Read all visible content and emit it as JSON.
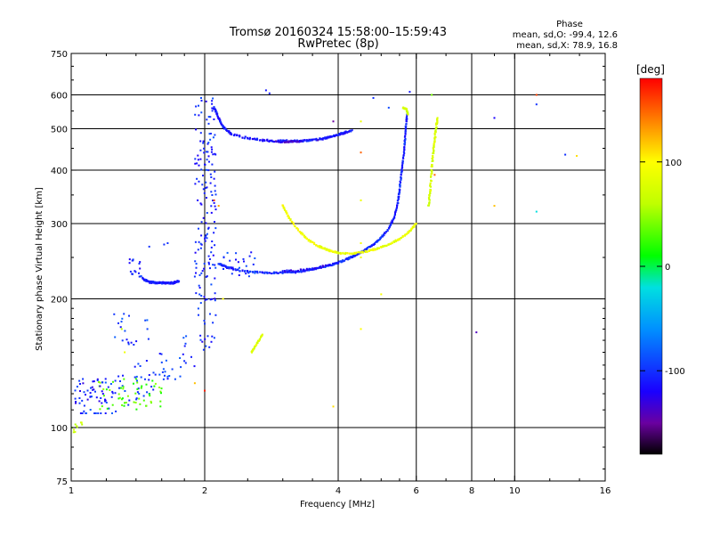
{
  "header": {
    "title_line1": "Tromsø 20160324 15:58:00–15:59:43",
    "title_line2": "RwPretec (8p)"
  },
  "phase_stats": {
    "title": "Phase",
    "line_o": "mean, sd,O: -99.4, 12.6",
    "line_x": "mean, sd,X: 78.9, 16.8"
  },
  "colorbar": {
    "label": "[deg]",
    "ticks": [
      {
        "value": 100,
        "label": "100"
      },
      {
        "value": 0,
        "label": "0"
      },
      {
        "value": -100,
        "label": "-100"
      }
    ],
    "range": [
      -180,
      180
    ],
    "stops": [
      {
        "value": -180,
        "color": "#000000"
      },
      {
        "value": -150,
        "color": "#6a00a0"
      },
      {
        "value": -120,
        "color": "#1a00ff"
      },
      {
        "value": -60,
        "color": "#0090ff"
      },
      {
        "value": -20,
        "color": "#00e0e0"
      },
      {
        "value": 10,
        "color": "#00ff00"
      },
      {
        "value": 60,
        "color": "#c0ff00"
      },
      {
        "value": 100,
        "color": "#ffff00"
      },
      {
        "value": 140,
        "color": "#ff8000"
      },
      {
        "value": 180,
        "color": "#ff0000"
      }
    ]
  },
  "chart_data": {
    "type": "scatter",
    "title": "Tromsø 20160324 15:58:00–15:59:43",
    "subtitle": "RwPretec (8p)",
    "xlabel": "Frequency [MHz]",
    "ylabel": "Stationary phase Virtual Height [km]",
    "xscale": "log",
    "yscale": "log",
    "xlim": [
      1,
      16
    ],
    "ylim": [
      75,
      750
    ],
    "xticks": [
      {
        "value": 1,
        "label": "1"
      },
      {
        "value": 2,
        "label": "2"
      },
      {
        "value": 4,
        "label": "4"
      },
      {
        "value": 6,
        "label": "6"
      },
      {
        "value": 8,
        "label": "8"
      },
      {
        "value": 10,
        "label": "10"
      },
      {
        "value": 16,
        "label": "16"
      }
    ],
    "xtick_positions": [
      1,
      1.2,
      1.4,
      1.6,
      1.8,
      2,
      2.5,
      3,
      3.5,
      4,
      4.5,
      5,
      5.5,
      6,
      7,
      8,
      9,
      10,
      12,
      14,
      16
    ],
    "yticks": [
      {
        "value": 75,
        "label": "75"
      },
      {
        "value": 100,
        "label": "100"
      },
      {
        "value": 200,
        "label": "200"
      },
      {
        "value": 300,
        "label": "300"
      },
      {
        "value": 400,
        "label": "400"
      },
      {
        "value": 500,
        "label": "500"
      },
      {
        "value": 600,
        "label": "600"
      },
      {
        "value": 750,
        "label": "750"
      }
    ],
    "ytick_positions": [
      75,
      80,
      90,
      100,
      110,
      120,
      130,
      140,
      150,
      160,
      170,
      180,
      190,
      200,
      250,
      300,
      350,
      400,
      450,
      500,
      550,
      600,
      650,
      700,
      750
    ],
    "grid_x": [
      2,
      4,
      6,
      8,
      10
    ],
    "grid_y": [
      100,
      200,
      300,
      400,
      500,
      600
    ],
    "grid": true,
    "color_encoding": "phase_deg",
    "traces": [
      {
        "name": "",
        "phase": -110,
        "spread": 0.005,
        "dup": 3,
        "points": [
          [
            1.45,
            223
          ],
          [
            1.5,
            219
          ],
          [
            1.55,
            218
          ],
          [
            1.6,
            218
          ],
          [
            1.65,
            218
          ],
          [
            1.7,
            218
          ],
          [
            1.75,
            220
          ]
        ]
      },
      {
        "name": "",
        "phase": -105,
        "spread": 0.004,
        "dup": 3,
        "points": [
          [
            2.15,
            242
          ],
          [
            2.25,
            237
          ],
          [
            2.4,
            233
          ],
          [
            2.6,
            231
          ],
          [
            2.8,
            230
          ],
          [
            3.0,
            230
          ],
          [
            3.2,
            231
          ],
          [
            3.4,
            233
          ],
          [
            3.6,
            236
          ],
          [
            3.8,
            239
          ],
          [
            4.0,
            243
          ],
          [
            4.2,
            248
          ],
          [
            4.4,
            254
          ],
          [
            4.6,
            260
          ],
          [
            4.8,
            268
          ],
          [
            5.0,
            278
          ],
          [
            5.2,
            292
          ],
          [
            5.35,
            310
          ],
          [
            5.45,
            335
          ],
          [
            5.5,
            360
          ],
          [
            5.55,
            390
          ],
          [
            5.6,
            420
          ],
          [
            5.65,
            460
          ],
          [
            5.68,
            500
          ],
          [
            5.72,
            540
          ]
        ]
      },
      {
        "name": "",
        "phase": -120,
        "spread": 0.004,
        "dup": 2,
        "points": [
          [
            3.0,
            232
          ],
          [
            3.2,
            233
          ],
          [
            3.5,
            235
          ],
          [
            3.8,
            240
          ]
        ]
      },
      {
        "name": "",
        "phase": -110,
        "spread": 0.005,
        "dup": 3,
        "points": [
          [
            2.1,
            560
          ],
          [
            2.15,
            530
          ],
          [
            2.2,
            505
          ],
          [
            2.3,
            485
          ],
          [
            2.5,
            475
          ],
          [
            2.7,
            470
          ],
          [
            2.9,
            468
          ],
          [
            3.1,
            468
          ],
          [
            3.3,
            468
          ],
          [
            3.5,
            470
          ],
          [
            3.7,
            474
          ],
          [
            3.9,
            480
          ],
          [
            4.1,
            488
          ],
          [
            4.3,
            496
          ]
        ]
      },
      {
        "name": "",
        "phase": -130,
        "spread": 0.004,
        "dup": 2,
        "points": [
          [
            2.9,
            466
          ],
          [
            3.1,
            466
          ],
          [
            3.3,
            467
          ]
        ]
      },
      {
        "name": "",
        "phase": 90,
        "spread": 0.004,
        "dup": 3,
        "points": [
          [
            3.0,
            330
          ],
          [
            3.1,
            310
          ],
          [
            3.25,
            290
          ],
          [
            3.4,
            276
          ],
          [
            3.6,
            266
          ],
          [
            3.8,
            260
          ],
          [
            4.0,
            256
          ],
          [
            4.3,
            255
          ],
          [
            4.6,
            258
          ],
          [
            4.9,
            262
          ],
          [
            5.2,
            268
          ],
          [
            5.5,
            276
          ],
          [
            5.8,
            288
          ],
          [
            6.0,
            300
          ]
        ]
      },
      {
        "name": "",
        "phase": 75,
        "spread": 0.006,
        "dup": 3,
        "points": [
          [
            6.4,
            330
          ],
          [
            6.45,
            360
          ],
          [
            6.5,
            400
          ],
          [
            6.55,
            440
          ],
          [
            6.6,
            470
          ],
          [
            6.65,
            500
          ],
          [
            6.7,
            530
          ]
        ]
      },
      {
        "name": "",
        "phase": 70,
        "spread": 0.004,
        "dup": 2,
        "points": [
          [
            5.6,
            560
          ],
          [
            5.7,
            555
          ],
          [
            5.75,
            540
          ]
        ]
      },
      {
        "name": "",
        "phase": 80,
        "spread": 0.004,
        "dup": 2,
        "points": [
          [
            2.55,
            150
          ],
          [
            2.6,
            155
          ],
          [
            2.65,
            160
          ],
          [
            2.7,
            165
          ]
        ]
      }
    ],
    "clouds": [
      {
        "name": "",
        "phase": -105,
        "count": 170,
        "x": [
          1.9,
          2.12
        ],
        "y": [
          150,
          590
        ],
        "logy": true
      },
      {
        "name": "",
        "phase": -100,
        "count": 90,
        "x": [
          1.05,
          1.9
        ],
        "y": [
          108,
          165
        ],
        "ramp": true
      },
      {
        "name": "",
        "phase": 30,
        "count": 55,
        "x": [
          1.15,
          1.6
        ],
        "y": [
          110,
          130
        ]
      },
      {
        "name": "",
        "phase": -110,
        "count": 35,
        "x": [
          1.02,
          1.2
        ],
        "y": [
          112,
          130
        ]
      },
      {
        "name": "",
        "phase": 60,
        "count": 10,
        "x": [
          1.0,
          1.06
        ],
        "y": [
          97,
          104
        ]
      },
      {
        "name": "",
        "phase": -95,
        "count": 20,
        "x": [
          1.25,
          1.5
        ],
        "y": [
          155,
          185
        ]
      },
      {
        "name": "",
        "phase": -105,
        "count": 18,
        "x": [
          1.35,
          1.45
        ],
        "y": [
          225,
          250
        ]
      },
      {
        "name": "",
        "phase": -100,
        "count": 25,
        "x": [
          2.2,
          2.6
        ],
        "y": [
          225,
          260
        ]
      }
    ],
    "scatter": [
      {
        "x": 2.8,
        "y": 605,
        "phase": -110
      },
      {
        "x": 2.75,
        "y": 615,
        "phase": -110
      },
      {
        "x": 3.6,
        "y": 470,
        "phase": -140
      },
      {
        "x": 3.9,
        "y": 520,
        "phase": -150
      },
      {
        "x": 4.5,
        "y": 520,
        "phase": 90
      },
      {
        "x": 4.5,
        "y": 440,
        "phase": 150
      },
      {
        "x": 4.5,
        "y": 340,
        "phase": 90
      },
      {
        "x": 4.5,
        "y": 270,
        "phase": 95
      },
      {
        "x": 4.5,
        "y": 250,
        "phase": 90
      },
      {
        "x": 4.5,
        "y": 170,
        "phase": 100
      },
      {
        "x": 4.8,
        "y": 590,
        "phase": -100
      },
      {
        "x": 5.0,
        "y": 205,
        "phase": 95
      },
      {
        "x": 5.2,
        "y": 560,
        "phase": -90
      },
      {
        "x": 5.8,
        "y": 610,
        "phase": -110
      },
      {
        "x": 6.5,
        "y": 600,
        "phase": 40
      },
      {
        "x": 6.6,
        "y": 390,
        "phase": 150
      },
      {
        "x": 8.2,
        "y": 167,
        "phase": -140
      },
      {
        "x": 9.0,
        "y": 530,
        "phase": -120
      },
      {
        "x": 9.0,
        "y": 330,
        "phase": 120
      },
      {
        "x": 11.2,
        "y": 600,
        "phase": 160
      },
      {
        "x": 11.2,
        "y": 570,
        "phase": -100
      },
      {
        "x": 11.2,
        "y": 320,
        "phase": -20
      },
      {
        "x": 13.0,
        "y": 435,
        "phase": -100
      },
      {
        "x": 13.8,
        "y": 432,
        "phase": 110
      },
      {
        "x": 3.9,
        "y": 112,
        "phase": 110
      },
      {
        "x": 2.2,
        "y": 200,
        "phase": 100
      },
      {
        "x": 2.1,
        "y": 340,
        "phase": 160
      },
      {
        "x": 2.15,
        "y": 330,
        "phase": 130
      },
      {
        "x": 2.0,
        "y": 122,
        "phase": 170
      },
      {
        "x": 1.9,
        "y": 127,
        "phase": 120
      },
      {
        "x": 2.0,
        "y": 175,
        "phase": -100
      },
      {
        "x": 1.65,
        "y": 270,
        "phase": -100
      },
      {
        "x": 1.62,
        "y": 268,
        "phase": -100
      },
      {
        "x": 1.5,
        "y": 265,
        "phase": -100
      },
      {
        "x": 1.3,
        "y": 170,
        "phase": 60
      },
      {
        "x": 1.32,
        "y": 150,
        "phase": 90
      }
    ]
  }
}
